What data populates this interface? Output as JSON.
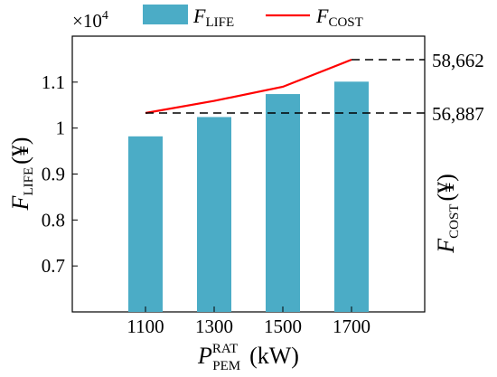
{
  "chart_data": {
    "type": "bar",
    "categories": [
      "1100",
      "1300",
      "1500",
      "1700"
    ],
    "series": [
      {
        "name_main": "F",
        "name_sub": "LIFE",
        "type": "bar",
        "color": "#4BACC6",
        "values": [
          0.982,
          1.024,
          1.074,
          1.101
        ]
      },
      {
        "name_main": "F",
        "name_sub": "COST",
        "type": "line",
        "color": "#FF0000",
        "values": [
          56887,
          57290,
          57760,
          58662
        ]
      }
    ],
    "y_left": {
      "ylim": [
        0.6,
        1.2
      ],
      "ticks": [
        "0.7",
        "0.8",
        "0.9",
        "1",
        "1.1"
      ],
      "tick_values": [
        0.7,
        0.8,
        0.9,
        1.0,
        1.1
      ],
      "multiplier": "×10",
      "multiplier_exp": "4",
      "label_main": "F",
      "label_sub": "LIFE",
      "label_unit": "(¥)"
    },
    "y_right": {
      "label_main": "F",
      "label_sub": "COST",
      "label_unit": "(¥)",
      "reference_labels": [
        "58,662",
        "56,887"
      ],
      "reference_values": [
        58662,
        56887
      ]
    },
    "x_axis": {
      "label_main": "P",
      "label_sup": "RAT",
      "label_sub": "PEM",
      "label_unit": "(kW)"
    },
    "legend": {
      "placement": "top-center",
      "items": [
        {
          "main": "F",
          "sub": "LIFE",
          "kind": "bar"
        },
        {
          "main": "F",
          "sub": "COST",
          "kind": "line"
        }
      ]
    },
    "grid": false
  }
}
